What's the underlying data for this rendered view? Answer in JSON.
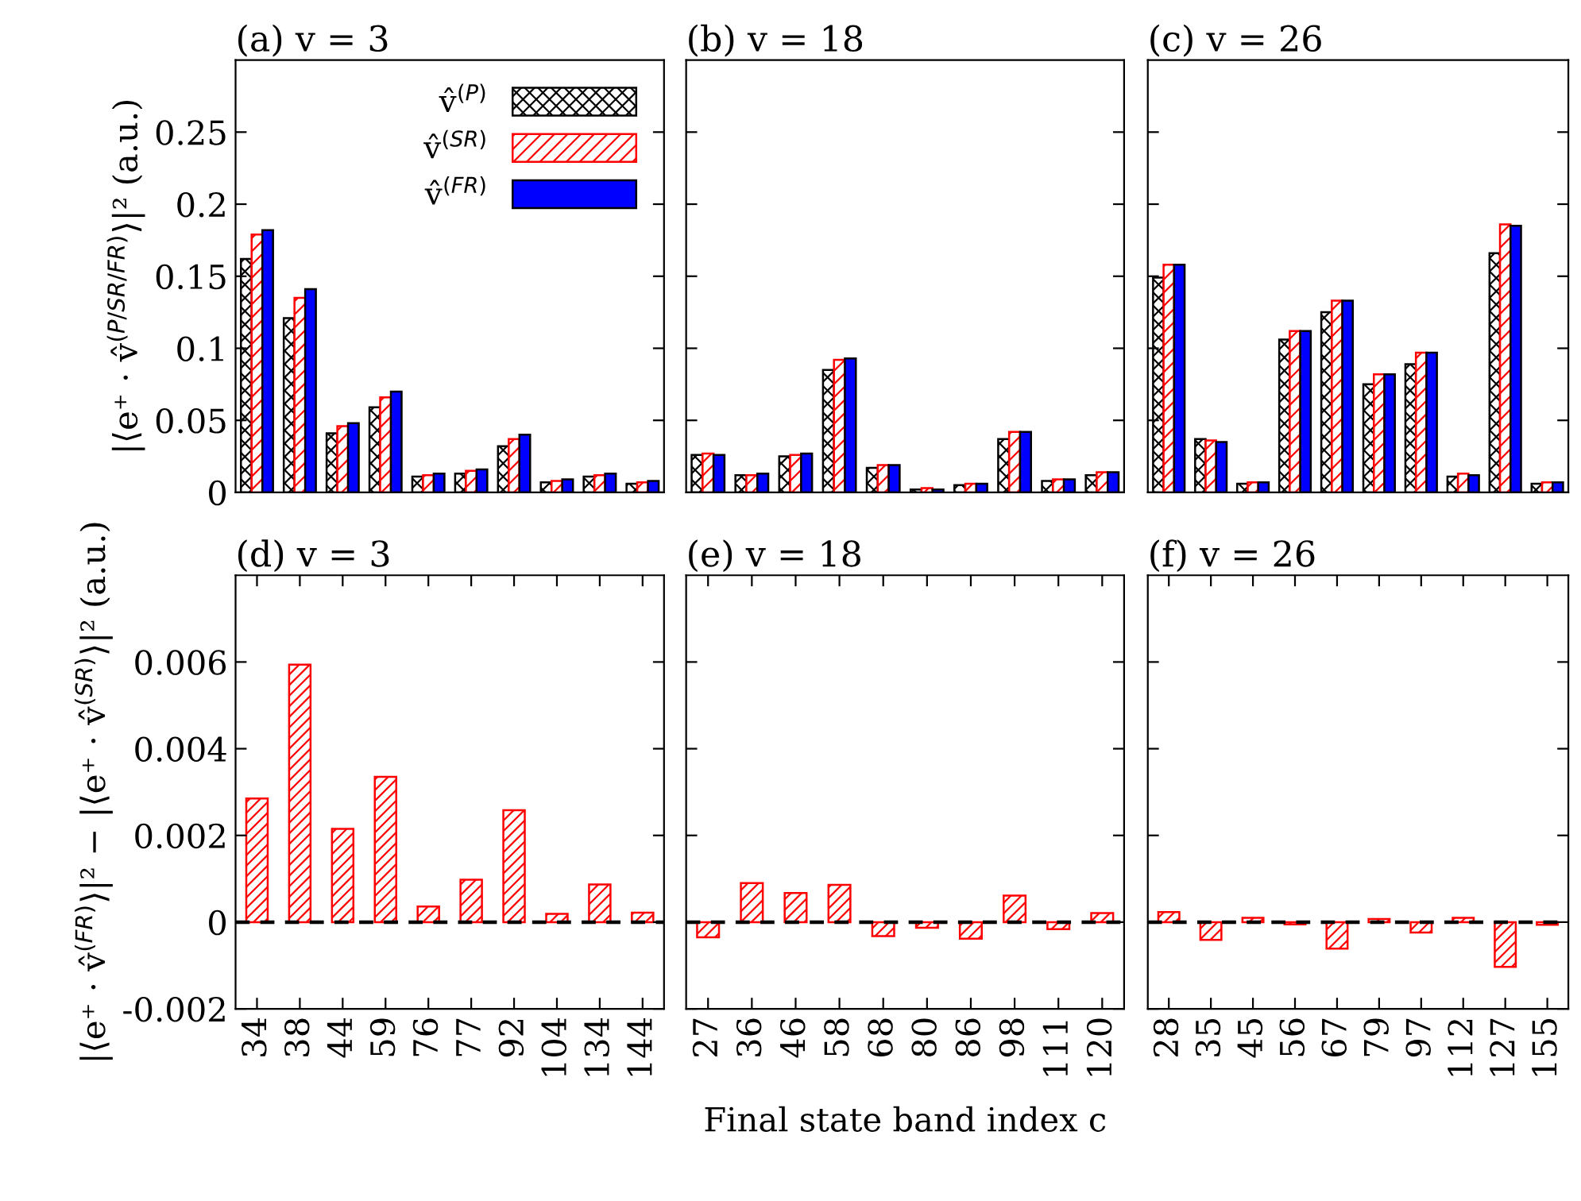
{
  "chart_data": [
    {
      "type": "bar",
      "title": "(a) v = 3",
      "ylabel": "|⟨e⁺ · v̂$^{(P/SR/FR)}$⟩|² (a.u.)",
      "categories": [
        "34",
        "38",
        "44",
        "59",
        "76",
        "77",
        "92",
        "104",
        "134",
        "144"
      ],
      "ylim": [
        0,
        0.3
      ],
      "yticks": [
        0,
        0.05,
        0.1,
        0.15,
        0.2,
        0.25
      ],
      "tick_labels": "y",
      "legend": "top right",
      "series": [
        {
          "name": "v̂$^{(P)}$",
          "color": "#000000",
          "values": [
            0.162,
            0.121,
            0.041,
            0.059,
            0.011,
            0.013,
            0.032,
            0.007,
            0.011,
            0.006
          ]
        },
        {
          "name": "v̂$^{(SR)}$",
          "color": "#ff0000",
          "values": [
            0.179,
            0.135,
            0.046,
            0.066,
            0.012,
            0.015,
            0.037,
            0.008,
            0.012,
            0.007
          ]
        },
        {
          "name": "v̂$^{(FR)}$",
          "color": "#0000ff",
          "values": [
            0.182,
            0.141,
            0.048,
            0.07,
            0.013,
            0.016,
            0.04,
            0.009,
            0.013,
            0.008
          ]
        }
      ]
    },
    {
      "type": "bar",
      "title": "(b) v = 18",
      "categories": [
        "27",
        "36",
        "46",
        "58",
        "68",
        "80",
        "86",
        "98",
        "111",
        "120"
      ],
      "ylim": [
        0,
        0.3
      ],
      "yticks": [
        0,
        0.05,
        0.1,
        0.15,
        0.2,
        0.25
      ],
      "tick_labels": false,
      "series": [
        {
          "color": "#000000",
          "values": [
            0.026,
            0.012,
            0.025,
            0.085,
            0.017,
            0.002,
            0.005,
            0.037,
            0.008,
            0.012
          ]
        },
        {
          "color": "#ff0000",
          "values": [
            0.027,
            0.012,
            0.026,
            0.092,
            0.019,
            0.003,
            0.006,
            0.042,
            0.009,
            0.014
          ]
        },
        {
          "color": "#0000ff",
          "values": [
            0.026,
            0.013,
            0.027,
            0.093,
            0.019,
            0.002,
            0.006,
            0.042,
            0.009,
            0.014
          ]
        }
      ]
    },
    {
      "type": "bar",
      "title": "(c) v = 26",
      "categories": [
        "28",
        "35",
        "45",
        "56",
        "67",
        "79",
        "97",
        "112",
        "127",
        "155"
      ],
      "ylim": [
        0,
        0.3
      ],
      "yticks": [
        0,
        0.05,
        0.1,
        0.15,
        0.2,
        0.25
      ],
      "tick_labels": false,
      "series": [
        {
          "color": "#000000",
          "values": [
            0.149,
            0.037,
            0.006,
            0.106,
            0.125,
            0.075,
            0.089,
            0.011,
            0.166,
            0.006
          ]
        },
        {
          "color": "#ff0000",
          "values": [
            0.158,
            0.036,
            0.007,
            0.112,
            0.133,
            0.082,
            0.097,
            0.013,
            0.186,
            0.007
          ]
        },
        {
          "color": "#0000ff",
          "values": [
            0.158,
            0.035,
            0.007,
            0.112,
            0.133,
            0.082,
            0.097,
            0.012,
            0.185,
            0.007
          ]
        }
      ]
    },
    {
      "type": "bar",
      "title": "(d) v = 3",
      "ylabel": "|⟨e⁺ · v̂$^{(FR)}$⟩|² − |⟨e⁺ · v̂$^{(SR)}$⟩|² (a.u.)",
      "categories": [
        "34",
        "38",
        "44",
        "59",
        "76",
        "77",
        "92",
        "104",
        "134",
        "144"
      ],
      "ylim": [
        -0.002,
        0.008
      ],
      "yticks": [
        -0.002,
        0,
        0.002,
        0.004,
        0.006
      ],
      "ref_lines": [
        {
          "axis": "y",
          "value": 0,
          "color": "#000000",
          "line_style": "dashed"
        }
      ],
      "series": [
        {
          "color": "#ff0000",
          "values": [
            0.00285,
            0.00594,
            0.00215,
            0.00335,
            0.00036,
            0.00098,
            0.00258,
            0.00019,
            0.00087,
            0.00022
          ]
        }
      ]
    },
    {
      "type": "bar",
      "title": "(e) v = 18",
      "xlabel": "Final state band index c",
      "categories": [
        "27",
        "36",
        "46",
        "58",
        "68",
        "80",
        "86",
        "98",
        "111",
        "120"
      ],
      "ylim": [
        -0.002,
        0.008
      ],
      "yticks": [
        -0.002,
        0,
        0.002,
        0.004,
        0.006
      ],
      "tick_labels": "x",
      "ref_lines": [
        {
          "axis": "y",
          "value": 0,
          "color": "#000000",
          "line_style": "dashed"
        }
      ],
      "series": [
        {
          "color": "#ff0000",
          "values": [
            -0.00035,
            0.0009,
            0.00067,
            0.00086,
            -0.00032,
            -0.00013,
            -0.00038,
            0.00061,
            -0.00016,
            0.00021
          ]
        }
      ]
    },
    {
      "type": "bar",
      "title": "(f) v = 26",
      "categories": [
        "28",
        "35",
        "45",
        "56",
        "67",
        "79",
        "97",
        "112",
        "127",
        "155"
      ],
      "ylim": [
        -0.002,
        0.008
      ],
      "yticks": [
        -0.002,
        0,
        0.002,
        0.004,
        0.006
      ],
      "tick_labels": "x",
      "ref_lines": [
        {
          "axis": "y",
          "value": 0,
          "color": "#000000",
          "line_style": "dashed"
        }
      ],
      "series": [
        {
          "color": "#ff0000",
          "values": [
            0.00023,
            -0.00041,
            0.0001,
            -5e-05,
            -0.00061,
            7e-05,
            -0.00024,
            0.0001,
            -0.00103,
            -6e-05
          ]
        }
      ]
    }
  ]
}
